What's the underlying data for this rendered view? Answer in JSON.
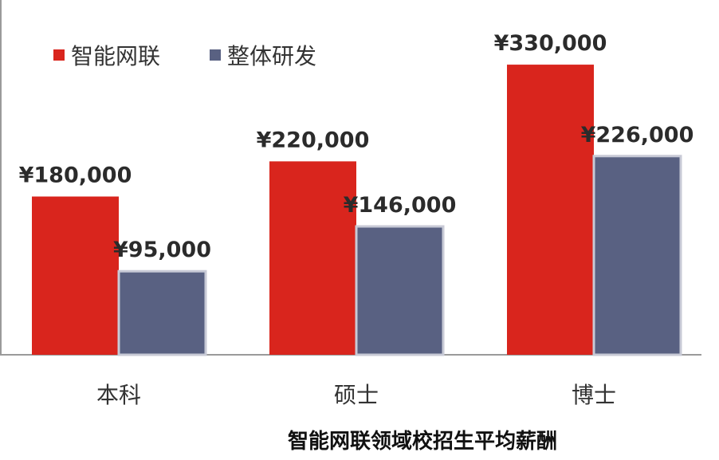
{
  "chart_data": {
    "type": "bar",
    "title": "",
    "caption": "智能网联领域校招生平均薪酬",
    "xlabel": "",
    "ylabel": "",
    "categories": [
      "本科",
      "硕士",
      "博士"
    ],
    "series": [
      {
        "name": "智能网联",
        "color": "#d9251d",
        "values": [
          180000,
          220000,
          330000
        ],
        "labels": [
          "¥180,000",
          "¥220,000",
          "¥330,000"
        ]
      },
      {
        "name": "整体研发",
        "color": "#596182",
        "values": [
          95000,
          146000,
          226000
        ],
        "labels": [
          "¥95,000",
          "¥146,000",
          "¥226,000"
        ]
      }
    ],
    "ylim": [
      0,
      360000
    ],
    "grid": false,
    "legend": "top-left"
  }
}
